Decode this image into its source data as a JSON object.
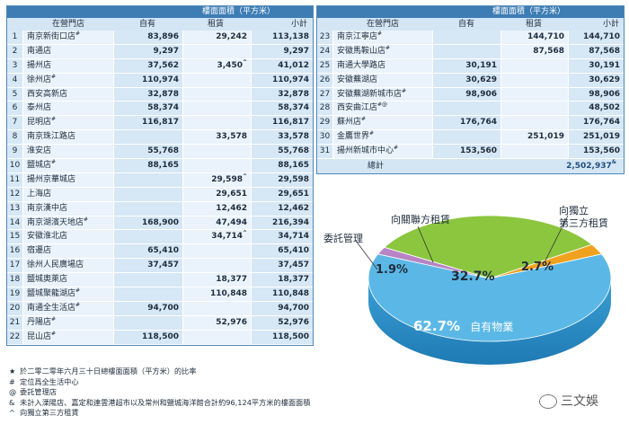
{
  "table_left": {
    "header_area": "樓面面積（平方米）",
    "col_store": "在營門店",
    "col_own": "自有",
    "col_rent": "租賃",
    "col_subtotal": "小計",
    "rows": [
      {
        "idx": "1",
        "name": "南京新街口店",
        "mark": "#",
        "own": "83,896",
        "rent": "29,242",
        "rmark": "",
        "sub": "113,138"
      },
      {
        "idx": "2",
        "name": "南通店",
        "mark": "",
        "own": "9,297",
        "rent": "",
        "rmark": "",
        "sub": "9,297"
      },
      {
        "idx": "3",
        "name": "揚州店",
        "mark": "",
        "own": "37,562",
        "rent": "3,450",
        "rmark": "^",
        "sub": "41,012"
      },
      {
        "idx": "4",
        "name": "徐州店",
        "mark": "#",
        "own": "110,974",
        "rent": "",
        "rmark": "",
        "sub": "110,974"
      },
      {
        "idx": "5",
        "name": "西安高新店",
        "mark": "",
        "own": "32,878",
        "rent": "",
        "rmark": "",
        "sub": "32,878"
      },
      {
        "idx": "6",
        "name": "泰州店",
        "mark": "",
        "own": "58,374",
        "rent": "",
        "rmark": "",
        "sub": "58,374"
      },
      {
        "idx": "7",
        "name": "昆明店",
        "mark": "#",
        "own": "116,817",
        "rent": "",
        "rmark": "",
        "sub": "116,817"
      },
      {
        "idx": "8",
        "name": "南京珠江路店",
        "mark": "",
        "own": "",
        "rent": "33,578",
        "rmark": "",
        "sub": "33,578"
      },
      {
        "idx": "9",
        "name": "淮安店",
        "mark": "",
        "own": "55,768",
        "rent": "",
        "rmark": "",
        "sub": "55,768"
      },
      {
        "idx": "10",
        "name": "鹽城店",
        "mark": "#",
        "own": "88,165",
        "rent": "",
        "rmark": "",
        "sub": "88,165"
      },
      {
        "idx": "11",
        "name": "揚州京華城店",
        "mark": "",
        "own": "",
        "rent": "29,598",
        "rmark": "^",
        "sub": "29,598"
      },
      {
        "idx": "12",
        "name": "上海店",
        "mark": "",
        "own": "",
        "rent": "29,651",
        "rmark": "",
        "sub": "29,651"
      },
      {
        "idx": "13",
        "name": "南京漢中店",
        "mark": "",
        "own": "",
        "rent": "12,462",
        "rmark": "",
        "sub": "12,462"
      },
      {
        "idx": "14",
        "name": "南京湖濱天地店",
        "mark": "#",
        "own": "168,900",
        "rent": "47,494",
        "rmark": "",
        "sub": "216,394"
      },
      {
        "idx": "15",
        "name": "安徽淮北店",
        "mark": "",
        "own": "",
        "rent": "34,714",
        "rmark": "^",
        "sub": "34,714"
      },
      {
        "idx": "16",
        "name": "宿遷店",
        "mark": "",
        "own": "65,410",
        "rent": "",
        "rmark": "",
        "sub": "65,410"
      },
      {
        "idx": "17",
        "name": "徐州人民廣場店",
        "mark": "",
        "own": "37,457",
        "rent": "",
        "rmark": "",
        "sub": "37,457"
      },
      {
        "idx": "18",
        "name": "鹽城奧萊店",
        "mark": "",
        "own": "",
        "rent": "18,377",
        "rmark": "",
        "sub": "18,377"
      },
      {
        "idx": "19",
        "name": "鹽城聚龍湖店",
        "mark": "#",
        "own": "",
        "rent": "110,848",
        "rmark": "",
        "sub": "110,848"
      },
      {
        "idx": "20",
        "name": "南通全生活店",
        "mark": "#",
        "own": "94,700",
        "rent": "",
        "rmark": "",
        "sub": "94,700"
      },
      {
        "idx": "21",
        "name": "丹陽店",
        "mark": "#",
        "own": "",
        "rent": "52,976",
        "rmark": "",
        "sub": "52,976"
      },
      {
        "idx": "22",
        "name": "昆山店",
        "mark": "#",
        "own": "118,500",
        "rent": "",
        "rmark": "",
        "sub": "118,500"
      }
    ]
  },
  "table_right": {
    "header_area": "樓面面積（平方米）",
    "col_store": "在營門店",
    "col_own": "自有",
    "col_rent": "租賃",
    "col_subtotal": "小計",
    "rows": [
      {
        "idx": "23",
        "name": "南京江寧店",
        "mark": "#",
        "own": "",
        "rent": "144,710",
        "rmark": "",
        "sub": "144,710"
      },
      {
        "idx": "24",
        "name": "安徽馬鞍山店",
        "mark": "#",
        "own": "",
        "rent": "87,568",
        "rmark": "",
        "sub": "87,568"
      },
      {
        "idx": "25",
        "name": "南通大學路店",
        "mark": "",
        "own": "30,191",
        "rent": "",
        "rmark": "",
        "sub": "30,191"
      },
      {
        "idx": "26",
        "name": "安徽蕪湖店",
        "mark": "",
        "own": "30,629",
        "rent": "",
        "rmark": "",
        "sub": "30,629"
      },
      {
        "idx": "27",
        "name": "安徽蕪湖新城市店",
        "mark": "#",
        "own": "98,906",
        "rent": "",
        "rmark": "",
        "sub": "98,906"
      },
      {
        "idx": "28",
        "name": "西安曲江店",
        "mark": "#@",
        "own": "",
        "rent": "",
        "rmark": "",
        "sub": "48,502"
      },
      {
        "idx": "29",
        "name": "蘇州店",
        "mark": "#",
        "own": "176,764",
        "rent": "",
        "rmark": "",
        "sub": "176,764"
      },
      {
        "idx": "30",
        "name": "金鷹世界",
        "mark": "#",
        "own": "",
        "rent": "251,019",
        "rmark": "",
        "sub": "251,019"
      },
      {
        "idx": "31",
        "name": "揚州新城市中心",
        "mark": "#",
        "own": "153,560",
        "rent": "",
        "rmark": "",
        "sub": "153,560"
      }
    ],
    "total_label": "總計",
    "total_value": "2,502,937",
    "total_mark": "&"
  },
  "chart_data": {
    "type": "pie",
    "title": "",
    "slices": [
      {
        "label": "自有物業",
        "value": 62.7,
        "pct": "62.7%",
        "color": "#5bb8e6"
      },
      {
        "label": "向關聯方租賃",
        "value": 32.7,
        "pct": "32.7%",
        "color": "#8cc63f"
      },
      {
        "label": "向獨立第三方租賃",
        "value": 2.7,
        "pct": "2.7%",
        "color": "#f0a21f"
      },
      {
        "label": "委託管理",
        "value": 1.9,
        "pct": "1.9%",
        "color": "#b784c6"
      }
    ],
    "labels": {
      "related": "向關聯方租賃",
      "independent_line1": "向獨立",
      "independent_line2": "第三方租賃",
      "entrusted": "委託管理",
      "own": "自有物業"
    }
  },
  "notes": [
    {
      "sym": "★",
      "text": "於二零二零年六月三十日總樓面面積（平方米）的比率"
    },
    {
      "sym": "#",
      "text": "定位爲全生活中心"
    },
    {
      "sym": "@",
      "text": "委託管理店"
    },
    {
      "sym": "&",
      "text": "未計入溧陽店、嘉定和連雲港超市以及常州和鹽城海洋館合計約96,124平方米的樓面面積"
    },
    {
      "sym": "^",
      "text": "向獨立第三方租賃"
    }
  ],
  "watermark": {
    "text": "三文娛"
  }
}
